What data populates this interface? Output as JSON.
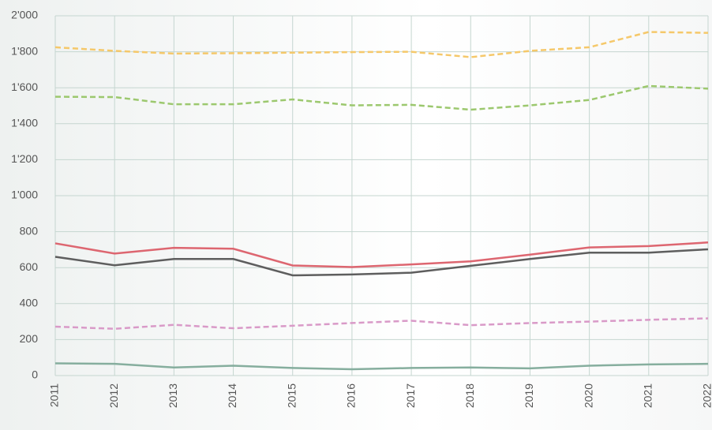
{
  "chart_data": {
    "type": "line",
    "categories": [
      "2011",
      "2012",
      "2013",
      "2014",
      "2015",
      "2016",
      "2017",
      "2018",
      "2019",
      "2020",
      "2021",
      "2022"
    ],
    "series": [
      {
        "color": "#f5c86a",
        "dashed": true,
        "values": [
          1825,
          1805,
          1790,
          1792,
          1795,
          1798,
          1800,
          1770,
          1805,
          1825,
          1910,
          1905
        ]
      },
      {
        "color": "#9cc86e",
        "dashed": true,
        "values": [
          1550,
          1548,
          1508,
          1508,
          1535,
          1502,
          1505,
          1478,
          1502,
          1532,
          1610,
          1595
        ]
      },
      {
        "color": "#dd6670",
        "dashed": false,
        "values": [
          735,
          678,
          710,
          705,
          612,
          603,
          618,
          635,
          672,
          712,
          720,
          740
        ]
      },
      {
        "color": "#5e5e5e",
        "dashed": false,
        "values": [
          660,
          613,
          648,
          648,
          557,
          562,
          572,
          610,
          648,
          683,
          683,
          702
        ]
      },
      {
        "color": "#d99ac8",
        "dashed": true,
        "values": [
          272,
          260,
          282,
          263,
          277,
          292,
          305,
          280,
          292,
          300,
          310,
          318
        ]
      },
      {
        "color": "#86ae9e",
        "dashed": false,
        "values": [
          68,
          65,
          45,
          55,
          42,
          35,
          42,
          45,
          40,
          55,
          62,
          65
        ]
      }
    ],
    "ylim": [
      0,
      2000
    ],
    "yticks": [
      0,
      200,
      400,
      600,
      800,
      {
        "value": 1000,
        "label": "1'000"
      },
      {
        "value": 1200,
        "label": "1'200"
      },
      {
        "value": 1400,
        "label": "1'400"
      },
      {
        "value": 1600,
        "label": "1'600"
      },
      {
        "value": 1800,
        "label": "1'800"
      },
      {
        "value": 2000,
        "label": "2'000"
      }
    ],
    "grid": true
  }
}
